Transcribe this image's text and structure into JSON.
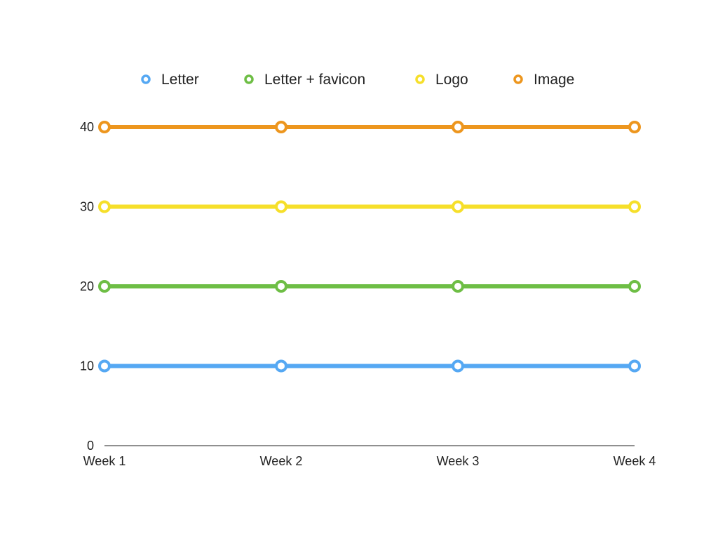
{
  "chart_data": {
    "type": "line",
    "title": "",
    "xlabel": "",
    "ylabel": "",
    "categories": [
      "Week 1",
      "Week 2",
      "Week 3",
      "Week 4"
    ],
    "ylim": [
      0,
      40
    ],
    "y_ticks": [
      0,
      10,
      20,
      30,
      40
    ],
    "grid": false,
    "legend_position": "top",
    "series": [
      {
        "name": "Letter",
        "color": "#55a8f3",
        "values": [
          10,
          10,
          10,
          10
        ]
      },
      {
        "name": "Letter + favicon",
        "color": "#6ebe45",
        "values": [
          20,
          20,
          20,
          20
        ]
      },
      {
        "name": "Logo",
        "color": "#f6df2a",
        "values": [
          30,
          30,
          30,
          30
        ]
      },
      {
        "name": "Image",
        "color": "#ed961e",
        "values": [
          40,
          40,
          40,
          40
        ]
      }
    ]
  }
}
